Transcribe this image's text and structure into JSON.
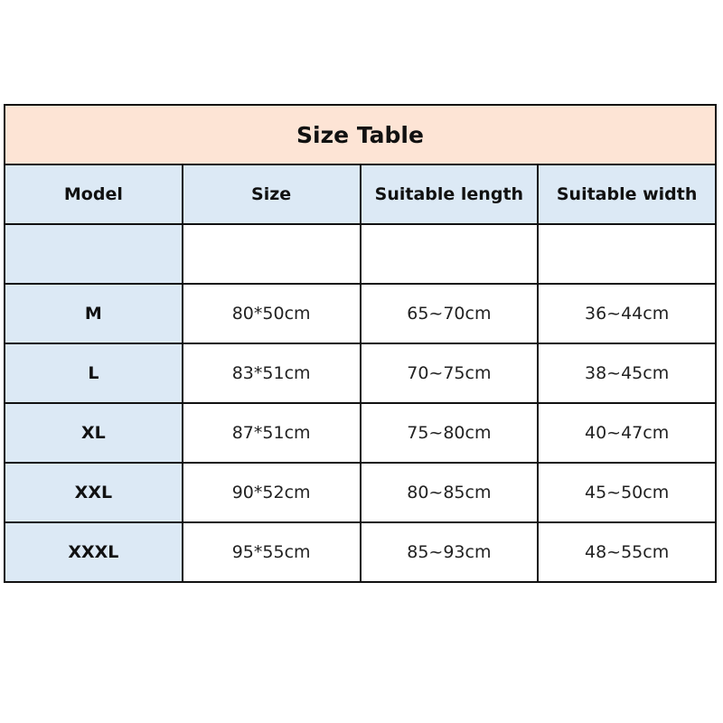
{
  "title": "Size Table",
  "columns": [
    "Model",
    "Size",
    "Suitable length",
    "Suitable width"
  ],
  "rows": [
    [
      "",
      "",
      "",
      ""
    ],
    [
      "M",
      "80*50cm",
      "65~70cm",
      "36~44cm"
    ],
    [
      "L",
      "83*51cm",
      "70~75cm",
      "38~45cm"
    ],
    [
      "XL",
      "87*51cm",
      "75~80cm",
      "40~47cm"
    ],
    [
      "XXL",
      "90*52cm",
      "80~85cm",
      "45~50cm"
    ],
    [
      "XXXL",
      "95*55cm",
      "85~93cm",
      "48~55cm"
    ]
  ],
  "colors": {
    "title_bg": "#fde4d5",
    "header_bg": "#dce9f5",
    "border": "#111111"
  }
}
